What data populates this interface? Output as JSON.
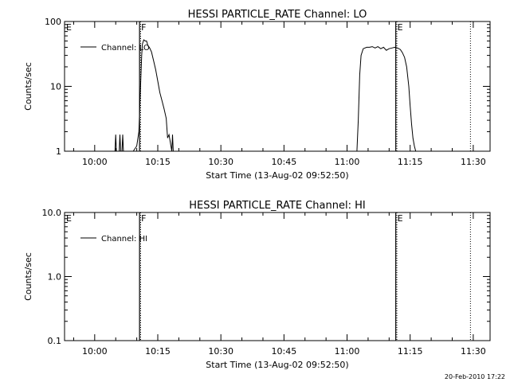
{
  "footer_timestamp": "20-Feb-2010 17:22",
  "chart_data": [
    {
      "type": "line",
      "title": "HESSI PARTICLE_RATE Channel: LO",
      "xlabel": "Start Time (13-Aug-02 09:52:50)",
      "ylabel": "Counts/sec",
      "y_scale": "log",
      "ylim": [
        1,
        100
      ],
      "xlim": [
        "09:52:50",
        "11:34:00"
      ],
      "x_ticks": [
        "10:00",
        "10:15",
        "10:30",
        "10:45",
        "11:00",
        "11:15",
        "11:30"
      ],
      "y_ticks": [
        "1",
        "10",
        "100"
      ],
      "grid": false,
      "legend_position": "top-left",
      "series": [
        {
          "name": "Channel: LO",
          "x": [
            "10:04:50",
            "10:05:00",
            "10:05:10",
            "10:05:50",
            "10:06:00",
            "10:06:10",
            "10:06:30",
            "10:06:40",
            "10:06:50",
            "10:09:10",
            "10:10:00",
            "10:10:30",
            "10:11:10",
            "10:11:20",
            "10:11:40",
            "10:12:00",
            "10:12:20",
            "10:12:40",
            "10:13:00",
            "10:13:30",
            "10:14:00",
            "10:14:30",
            "10:15:00",
            "10:15:30",
            "10:16:00",
            "10:16:30",
            "10:17:00",
            "10:17:20",
            "10:17:40",
            "10:18:20",
            "10:18:30",
            "10:18:40",
            "11:02:20",
            "11:02:40",
            "11:03:00",
            "11:03:20",
            "11:03:50",
            "11:04:40",
            "11:05:20",
            "11:06:00",
            "11:06:40",
            "11:07:20",
            "11:08:00",
            "11:08:40",
            "11:09:20",
            "11:10:00",
            "11:10:40",
            "11:11:20",
            "11:12:00",
            "11:12:40",
            "11:13:10",
            "11:13:40",
            "11:14:10",
            "11:14:40",
            "11:15:00",
            "11:15:20",
            "11:15:40",
            "11:16:00",
            "11:16:20",
            "11:16:40",
            "11:17:00"
          ],
          "y": [
            1,
            1.8,
            1,
            1,
            1.8,
            1,
            1,
            1.8,
            1,
            1,
            1.2,
            2,
            30,
            45,
            52,
            50,
            50,
            42,
            40,
            34,
            25,
            18,
            12,
            8,
            6,
            4.5,
            3.2,
            1.6,
            1.8,
            1,
            1.8,
            1,
            1,
            3,
            15,
            30,
            38,
            40,
            40,
            41,
            39,
            41,
            38,
            40,
            36,
            38,
            39,
            40,
            39,
            37,
            33,
            28,
            20,
            10,
            5,
            2.6,
            1.6,
            1.2,
            1,
            1,
            1
          ]
        }
      ],
      "annotations": [
        {
          "label": "E",
          "time": "09:52:50",
          "line": "none"
        },
        {
          "label": "F",
          "time": "10:10:40",
          "line": "solid"
        },
        {
          "label": "",
          "time": "10:10:55",
          "line": "dotted"
        },
        {
          "label": "E",
          "time": "11:11:35",
          "line": "solid"
        },
        {
          "label": "",
          "time": "11:11:50",
          "line": "dotted"
        },
        {
          "label": "",
          "time": "11:29:20",
          "line": "dotted"
        }
      ]
    },
    {
      "type": "line",
      "title": "HESSI PARTICLE_RATE Channel: HI",
      "xlabel": "Start Time (13-Aug-02 09:52:50)",
      "ylabel": "Counts/sec",
      "y_scale": "log",
      "ylim": [
        0.1,
        10
      ],
      "xlim": [
        "09:52:50",
        "11:34:00"
      ],
      "x_ticks": [
        "10:00",
        "10:15",
        "10:30",
        "10:45",
        "11:00",
        "11:15",
        "11:30"
      ],
      "y_ticks": [
        "0.1",
        "1.0",
        "10.0"
      ],
      "grid": false,
      "legend_position": "top-left",
      "series": [
        {
          "name": "Channel: HI",
          "x": [],
          "y": []
        }
      ],
      "annotations": [
        {
          "label": "E",
          "time": "09:52:50",
          "line": "none"
        },
        {
          "label": "F",
          "time": "10:10:40",
          "line": "solid"
        },
        {
          "label": "",
          "time": "10:10:55",
          "line": "dotted"
        },
        {
          "label": "E",
          "time": "11:11:35",
          "line": "solid"
        },
        {
          "label": "",
          "time": "11:11:50",
          "line": "dotted"
        },
        {
          "label": "",
          "time": "11:29:20",
          "line": "dotted"
        }
      ]
    }
  ]
}
